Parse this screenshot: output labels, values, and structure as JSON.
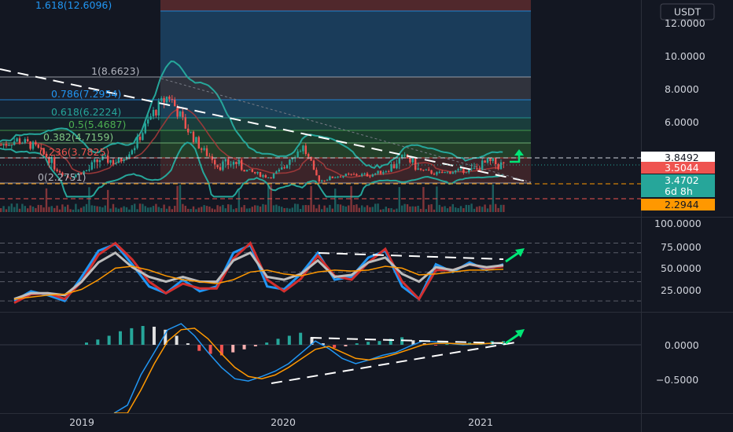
{
  "currency_label": "USDT",
  "x_axis_labels": [
    "2019",
    "2020",
    "2021"
  ],
  "price_axis": [
    "12.0000",
    "10.0000",
    "8.0000",
    "6.0000"
  ],
  "rsi_axis": [
    "100.0000",
    "75.0000",
    "50.0000",
    "25.0000"
  ],
  "macd_axis": [
    "0.0000",
    "−0.5000"
  ],
  "fib_labels": [
    {
      "text": "1.618(12.6096)",
      "color": "#2196f3"
    },
    {
      "text": "1(8.6623)",
      "color": "#b2b5be"
    },
    {
      "text": "0.786(7.2954)",
      "color": "#2196f3"
    },
    {
      "text": "0.618(6.2224)",
      "color": "#26a69a"
    },
    {
      "text": "0.5(5.4687)",
      "color": "#4caf50"
    },
    {
      "text": "0.382(4.7159)",
      "color": "#81c784"
    },
    {
      "text": "0.236(3.7825)",
      "color": "#ef5350"
    },
    {
      "text": "0(2.2751)",
      "color": "#b2b5be"
    }
  ],
  "price_tags": [
    {
      "text": "3.8492",
      "bg": "#ffffff",
      "fg": "#131722"
    },
    {
      "text": "3.5044",
      "bg": "#ef5350",
      "fg": "#ffffff"
    },
    {
      "text": "3.4702",
      "bg": "#26a69a",
      "fg": "#ffffff"
    },
    {
      "text": "6d 8h",
      "bg": "#26a69a",
      "fg": "#ffffff"
    },
    {
      "text": "2.2944",
      "bg": "#ff9800",
      "fg": "#131722"
    }
  ],
  "colors": {
    "background": "#131722",
    "up": "#26a69a",
    "down": "#ef5350",
    "arrow": "#00e676"
  },
  "chart_data": [
    {
      "type": "candlestick",
      "panel": "price",
      "currency": "USDT",
      "overlays": [
        "Fibonacci retracement",
        "Bollinger Bands",
        "Moving average",
        "Descending trendline"
      ],
      "x_ticks": [
        "2019",
        "2020",
        "2021"
      ],
      "y_ticks": [
        12,
        10,
        8,
        6
      ],
      "fib_levels": [
        {
          "ratio": 1.618,
          "price": 12.6096
        },
        {
          "ratio": 1,
          "price": 8.6623
        },
        {
          "ratio": 0.786,
          "price": 7.2954
        },
        {
          "ratio": 0.618,
          "price": 6.2224
        },
        {
          "ratio": 0.5,
          "price": 5.4687
        },
        {
          "ratio": 0.382,
          "price": 4.7159
        },
        {
          "ratio": 0.236,
          "price": 3.7825
        },
        {
          "ratio": 0,
          "price": 2.2751
        }
      ],
      "close_series": [
        [
          "2018-08",
          4.6
        ],
        [
          "2018-09",
          4.9
        ],
        [
          "2018-10",
          4.5
        ],
        [
          "2018-11",
          3.7
        ],
        [
          "2018-12",
          2.7
        ],
        [
          "2019-01",
          3.2
        ],
        [
          "2019-02",
          3.8
        ],
        [
          "2019-03",
          3.6
        ],
        [
          "2019-04",
          4.6
        ],
        [
          "2019-05",
          6.4
        ],
        [
          "2019-06",
          7.6
        ],
        [
          "2019-07",
          5.7
        ],
        [
          "2019-08",
          4.3
        ],
        [
          "2019-09",
          3.5
        ],
        [
          "2019-10",
          3.6
        ],
        [
          "2019-11",
          3.1
        ],
        [
          "2019-12",
          2.7
        ],
        [
          "2020-01",
          3.6
        ],
        [
          "2020-02",
          4.5
        ],
        [
          "2020-03",
          2.4
        ],
        [
          "2020-04",
          2.8
        ],
        [
          "2020-05",
          2.9
        ],
        [
          "2020-06",
          2.9
        ],
        [
          "2020-07",
          3.3
        ],
        [
          "2020-08",
          3.9
        ],
        [
          "2020-09",
          3.3
        ],
        [
          "2020-10",
          3.0
        ],
        [
          "2020-11",
          3.2
        ],
        [
          "2020-12",
          3.3
        ],
        [
          "2021-01",
          3.6
        ],
        [
          "2021-02",
          3.5
        ]
      ],
      "price_lines": {
        "last": 3.5044,
        "high": 3.8492,
        "level": 3.4702,
        "support": 2.2944
      },
      "countdown": "6d 8h"
    },
    {
      "type": "line",
      "panel": "oscillator",
      "y_ticks": [
        100,
        75,
        50,
        25
      ],
      "series": [
        {
          "color": "#2196f3",
          "values": [
            20,
            30,
            26,
            20,
            45,
            72,
            79,
            58,
            35,
            28,
            42,
            30,
            35,
            70,
            78,
            35,
            32,
            48,
            70,
            42,
            45,
            65,
            72,
            35,
            22,
            58,
            50,
            60,
            52,
            58
          ]
        },
        {
          "color": "#d32f2f",
          "values": [
            18,
            27,
            28,
            22,
            40,
            68,
            80,
            63,
            40,
            28,
            38,
            33,
            33,
            64,
            80,
            42,
            30,
            43,
            67,
            46,
            42,
            60,
            74,
            40,
            22,
            52,
            52,
            58,
            54,
            56
          ]
        },
        {
          "color": "#bdbdbd",
          "values": [
            22,
            28,
            28,
            26,
            40,
            60,
            70,
            55,
            45,
            40,
            45,
            40,
            40,
            62,
            70,
            45,
            42,
            48,
            62,
            45,
            47,
            60,
            65,
            48,
            40,
            55,
            52,
            58,
            55,
            57
          ]
        },
        {
          "color": "#ff9800",
          "values": [
            22,
            24,
            26,
            27,
            32,
            42,
            54,
            56,
            52,
            46,
            42,
            40,
            38,
            42,
            50,
            52,
            48,
            46,
            50,
            52,
            51,
            52,
            56,
            54,
            47,
            48,
            50,
            52,
            52,
            53
          ]
        }
      ]
    },
    {
      "type": "bar",
      "panel": "histogram_macd",
      "y_ticks": [
        0,
        -0.5
      ],
      "histogram": [
        0.03,
        0.07,
        0.12,
        0.18,
        0.22,
        0.25,
        0.24,
        0.2,
        0.12,
        0.02,
        -0.08,
        -0.12,
        -0.14,
        -0.1,
        -0.06,
        -0.02,
        0.03,
        0.08,
        0.12,
        0.16,
        0.1,
        0.02,
        -0.04,
        -0.02,
        0.02,
        0.04,
        0.05,
        0.08,
        0.1,
        0.06,
        0.02,
        -0.01,
        0.01,
        0.02,
        0.03,
        0.04,
        0.05,
        0.05
      ],
      "macd": [
        -1.2,
        -0.8,
        -0.4,
        -0.1,
        0.2,
        0.28,
        0.12,
        -0.1,
        -0.3,
        -0.45,
        -0.48,
        -0.42,
        -0.35,
        -0.25,
        -0.1,
        0.05,
        -0.05,
        -0.18,
        -0.25,
        -0.2,
        -0.14,
        -0.1,
        -0.02,
        0.05,
        0.04,
        0.02,
        0.0,
        0.01,
        0.02,
        0.03
      ],
      "signal": [
        -1.4,
        -1.0,
        -0.6,
        -0.25,
        0.05,
        0.2,
        0.22,
        0.08,
        -0.12,
        -0.3,
        -0.42,
        -0.45,
        -0.4,
        -0.3,
        -0.18,
        -0.06,
        -0.02,
        -0.1,
        -0.18,
        -0.2,
        -0.17,
        -0.12,
        -0.06,
        0.0,
        0.02,
        0.02,
        0.01,
        0.01,
        0.02,
        0.03
      ]
    }
  ]
}
